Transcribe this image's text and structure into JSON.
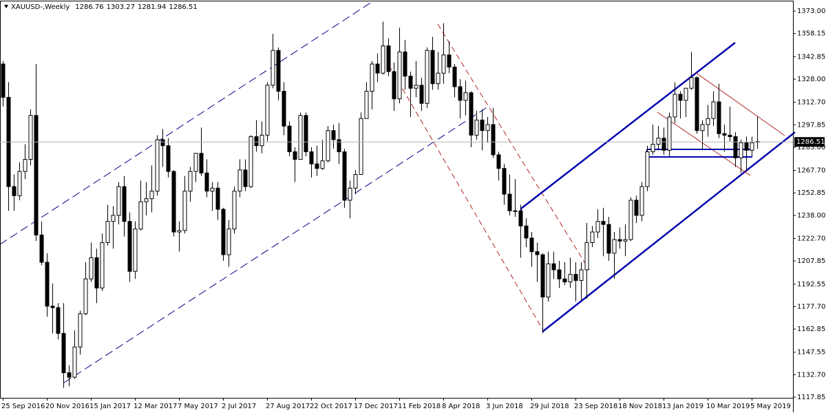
{
  "chart_data": {
    "type": "candlestick",
    "title": "XAUUSD-,Weekly",
    "ohlc_header": [
      1286.76,
      1303.27,
      1281.94,
      1286.51
    ],
    "last_price": 1286.51,
    "categories": [
      "25 Sep 2016",
      null,
      null,
      null,
      null,
      null,
      null,
      null,
      "20 Nov 2016",
      null,
      null,
      null,
      null,
      null,
      null,
      null,
      "15 Jan 2017",
      null,
      null,
      null,
      null,
      null,
      null,
      null,
      "12 Mar 2017",
      null,
      null,
      null,
      null,
      null,
      null,
      null,
      "7 May 2017",
      null,
      null,
      null,
      null,
      null,
      null,
      null,
      "2 Jul 2017",
      null,
      null,
      null,
      null,
      null,
      null,
      null,
      "27 Aug 2017",
      null,
      null,
      null,
      null,
      null,
      null,
      null,
      "22 Oct 2017",
      null,
      null,
      null,
      null,
      null,
      null,
      null,
      "17 Dec 2017",
      null,
      null,
      null,
      null,
      null,
      null,
      null,
      "11 Feb 2018",
      null,
      null,
      null,
      null,
      null,
      null,
      null,
      "8 Apr 2018",
      null,
      null,
      null,
      null,
      null,
      null,
      null,
      "3 Jun 2018",
      null,
      null,
      null,
      null,
      null,
      null,
      null,
      "29 Jul 2018",
      null,
      null,
      null,
      null,
      null,
      null,
      null,
      "23 Sep 2018",
      null,
      null,
      null,
      null,
      null,
      null,
      null,
      "18 Nov 2018",
      null,
      null,
      null,
      null,
      null,
      null,
      null,
      "13 Jan 2019",
      null,
      null,
      null,
      null,
      null,
      null,
      null,
      "10 Mar 2019",
      null,
      null,
      null,
      null,
      null,
      null,
      null,
      "5 May 2019",
      null
    ],
    "open": [
      1338,
      1316,
      1257,
      1251,
      1267,
      1275,
      1304,
      1225,
      1207,
      1178,
      1177,
      1160,
      1134,
      1131,
      1151,
      1173,
      1196,
      1210,
      1190,
      1220,
      1234,
      1238,
      1257,
      1234,
      1201,
      1229,
      1247,
      1249,
      1254,
      1288,
      1284,
      1267,
      1227,
      1228,
      1254,
      1267,
      1279,
      1266,
      1254,
      1256,
      1242,
      1212,
      1229,
      1254,
      1268,
      1257,
      1290,
      1284,
      1291,
      1324,
      1347,
      1320,
      1297,
      1280,
      1275,
      1304,
      1280,
      1272,
      1269,
      1274,
      1294,
      1288,
      1280,
      1248,
      1256,
      1265,
      1302,
      1320,
      1338,
      1332,
      1350,
      1333,
      1315,
      1346,
      1330,
      1322,
      1324,
      1312,
      1347,
      1325,
      1332,
      1344,
      1336,
      1323,
      1314,
      1319,
      1291,
      1301,
      1294,
      1298,
      1278,
      1269,
      1252,
      1241,
      1241,
      1231,
      1223,
      1214,
      1212,
      1184,
      1206,
      1202,
      1196,
      1194,
      1199,
      1195,
      1202,
      1220,
      1227,
      1234,
      1232,
      1213,
      1222,
      1221,
      1222,
      1248,
      1238,
      1257,
      1280,
      1285,
      1289,
      1281,
      1303,
      1318,
      1314,
      1322,
      1329,
      1294,
      1298,
      1302,
      1313,
      1292,
      1291,
      1290,
      1276,
      1286,
      1281,
      1286.76
    ],
    "high": [
      1340,
      1326,
      1265,
      1273,
      1285,
      1308,
      1338,
      1234,
      1213,
      1193,
      1180,
      1180,
      1139,
      1162,
      1175,
      1207,
      1220,
      1216,
      1226,
      1245,
      1244,
      1260,
      1264,
      1240,
      1234,
      1261,
      1260,
      1271,
      1291,
      1295,
      1289,
      1268,
      1234,
      1264,
      1270,
      1279,
      1296,
      1275,
      1260,
      1260,
      1243,
      1235,
      1257,
      1275,
      1275,
      1291,
      1301,
      1300,
      1326,
      1358,
      1349,
      1326,
      1300,
      1283,
      1306,
      1306,
      1283,
      1284,
      1288,
      1297,
      1298,
      1299,
      1282,
      1261,
      1268,
      1306,
      1326,
      1340,
      1345,
      1366,
      1355,
      1339,
      1362,
      1354,
      1333,
      1340,
      1329,
      1349,
      1356,
      1346,
      1365,
      1353,
      1338,
      1328,
      1327,
      1320,
      1307,
      1308,
      1303,
      1309,
      1280,
      1272,
      1265,
      1262,
      1245,
      1236,
      1227,
      1220,
      1213,
      1214,
      1214,
      1208,
      1207,
      1210,
      1207,
      1207,
      1233,
      1231,
      1242,
      1243,
      1237,
      1227,
      1230,
      1232,
      1250,
      1251,
      1260,
      1284,
      1298,
      1297,
      1296,
      1306,
      1326,
      1320,
      1322,
      1346,
      1330,
      1301,
      1311,
      1320,
      1325,
      1298,
      1310,
      1293,
      1288,
      1290,
      1290,
      1303.27
    ],
    "low": [
      1310,
      1241,
      1241,
      1248,
      1262,
      1271,
      1221,
      1205,
      1171,
      1160,
      1156,
      1124,
      1125,
      1130,
      1146,
      1172,
      1194,
      1180,
      1188,
      1218,
      1216,
      1232,
      1224,
      1194,
      1196,
      1228,
      1238,
      1240,
      1251,
      1270,
      1263,
      1224,
      1214,
      1226,
      1247,
      1260,
      1264,
      1250,
      1241,
      1235,
      1208,
      1204,
      1226,
      1250,
      1254,
      1256,
      1280,
      1279,
      1287,
      1322,
      1314,
      1291,
      1277,
      1260,
      1275,
      1277,
      1263,
      1264,
      1268,
      1273,
      1282,
      1272,
      1243,
      1236,
      1252,
      1265,
      1302,
      1308,
      1326,
      1331,
      1330,
      1307,
      1312,
      1321,
      1303,
      1316,
      1307,
      1309,
      1321,
      1321,
      1325,
      1332,
      1316,
      1302,
      1304,
      1283,
      1288,
      1281,
      1286,
      1276,
      1261,
      1245,
      1238,
      1237,
      1210,
      1217,
      1204,
      1194,
      1160,
      1181,
      1196,
      1190,
      1192,
      1190,
      1181,
      1182,
      1183,
      1217,
      1223,
      1211,
      1208,
      1196,
      1216,
      1211,
      1221,
      1233,
      1234,
      1254,
      1278,
      1281,
      1278,
      1277,
      1299,
      1302,
      1303,
      1321,
      1292,
      1281,
      1290,
      1297,
      1289,
      1280,
      1287,
      1270,
      1266,
      1267,
      1277,
      1281.94
    ],
    "close": [
      1316,
      1257,
      1251,
      1267,
      1275,
      1304,
      1225,
      1207,
      1178,
      1177,
      1160,
      1134,
      1131,
      1151,
      1173,
      1196,
      1210,
      1190,
      1220,
      1234,
      1238,
      1257,
      1234,
      1201,
      1229,
      1247,
      1249,
      1254,
      1288,
      1284,
      1267,
      1227,
      1228,
      1254,
      1267,
      1279,
      1266,
      1254,
      1256,
      1242,
      1212,
      1229,
      1254,
      1268,
      1257,
      1290,
      1284,
      1291,
      1324,
      1347,
      1320,
      1297,
      1280,
      1275,
      1304,
      1280,
      1272,
      1269,
      1274,
      1294,
      1288,
      1280,
      1248,
      1256,
      1265,
      1302,
      1320,
      1338,
      1332,
      1350,
      1333,
      1315,
      1346,
      1330,
      1322,
      1324,
      1312,
      1347,
      1325,
      1332,
      1344,
      1336,
      1323,
      1314,
      1319,
      1291,
      1301,
      1294,
      1298,
      1278,
      1269,
      1252,
      1241,
      1241,
      1231,
      1223,
      1214,
      1212,
      1184,
      1206,
      1202,
      1196,
      1194,
      1199,
      1195,
      1202,
      1220,
      1227,
      1234,
      1232,
      1213,
      1222,
      1221,
      1222,
      1248,
      1238,
      1257,
      1280,
      1285,
      1289,
      1281,
      1303,
      1318,
      1314,
      1322,
      1329,
      1294,
      1298,
      1302,
      1313,
      1292,
      1291,
      1290,
      1276,
      1286,
      1281,
      1286,
      1286.51
    ],
    "up_color": "#ffffff",
    "down_color": "#000000",
    "ylim": [
      1117.4,
      1379.4
    ],
    "yticks": [
      {
        "value": 1373,
        "label": "1373.00"
      },
      1358.15,
      1342.85,
      {
        "value": 1328,
        "label": "1328.00"
      },
      {
        "value": 1312.7,
        "label": "1312.70"
      },
      1297.85,
      {
        "value": 1283,
        "label": "1283.00"
      },
      {
        "value": 1267.7,
        "label": "1267.70"
      },
      1252.85,
      {
        "value": 1238,
        "label": "1238.00"
      },
      {
        "value": 1222.7,
        "label": "1222.70"
      },
      1207.85,
      1192.55,
      {
        "value": 1177.7,
        "label": "1177.70"
      },
      1162.85,
      1147.55,
      {
        "value": 1132.7,
        "label": "1132.70"
      },
      1117.85
    ],
    "grid": false
  }
}
